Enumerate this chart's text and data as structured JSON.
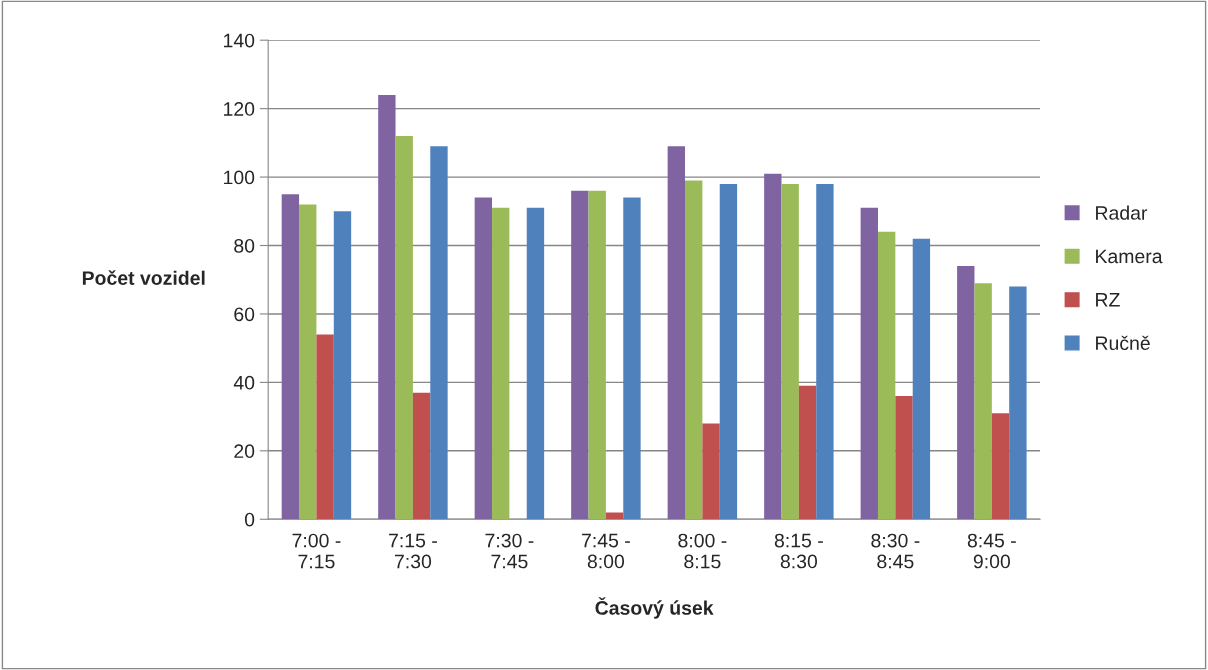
{
  "chart_data": {
    "type": "bar",
    "categories": [
      "7:00 -\n7:15",
      "7:15 -\n7:30",
      "7:30 -\n7:45",
      "7:45 -\n8:00",
      "8:00 -\n8:15",
      "8:15 -\n8:30",
      "8:30 -\n8:45",
      "8:45 -\n9:00"
    ],
    "series": [
      {
        "name": "Radar",
        "color": "#8064a2",
        "values": [
          95,
          124,
          94,
          96,
          109,
          101,
          91,
          74
        ]
      },
      {
        "name": "Kamera",
        "color": "#9bbb59",
        "values": [
          92,
          112,
          91,
          96,
          99,
          98,
          84,
          69
        ]
      },
      {
        "name": "RZ",
        "color": "#c0504d",
        "values": [
          54,
          37,
          null,
          2,
          28,
          39,
          36,
          31
        ]
      },
      {
        "name": "Ručně",
        "color": "#4f81bd",
        "values": [
          90,
          109,
          91,
          94,
          98,
          98,
          82,
          68
        ]
      }
    ],
    "xlabel": "Časový úsek",
    "ylabel": "Počet vozidel",
    "ylim": [
      0,
      140
    ],
    "yticks": [
      0,
      20,
      40,
      60,
      80,
      100,
      120,
      140
    ],
    "grid": "y",
    "legend": "right"
  }
}
